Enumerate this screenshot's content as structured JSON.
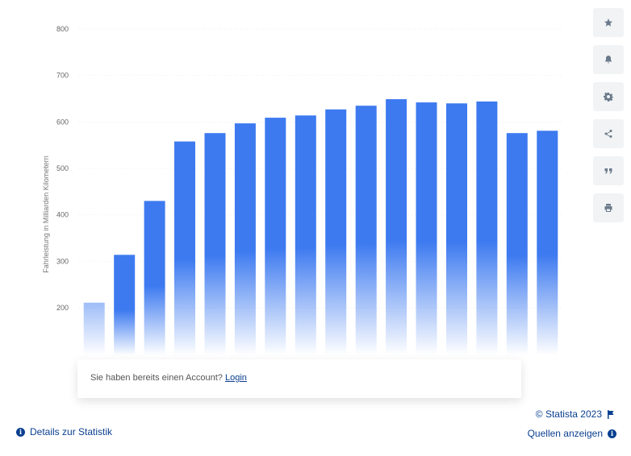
{
  "chart_data": {
    "type": "bar",
    "title": "",
    "xlabel": "",
    "ylabel": "Fahrleistung in Milliarden Kilometern",
    "ylim": [
      100,
      800
    ],
    "yticks": [
      "200",
      "300",
      "400",
      "500",
      "600",
      "700",
      "800"
    ],
    "grid": true,
    "categories": [
      "",
      "",
      "",
      "",
      "",
      "",
      "",
      "",
      "",
      "",
      "",
      "",
      "",
      "",
      "",
      ""
    ],
    "values": [
      211,
      314,
      430,
      558,
      576,
      597,
      609,
      614,
      627,
      635,
      649,
      642,
      640,
      644,
      576,
      581
    ],
    "colors": {
      "bar": "#3d7af0",
      "grid": "#eeeeee"
    }
  },
  "login": {
    "prompt": "Sie haben bereits einen Account?",
    "link": "Login"
  },
  "sidebar": {
    "buttons": [
      {
        "icon": "star-icon"
      },
      {
        "icon": "bell-icon"
      },
      {
        "icon": "gear-icon"
      },
      {
        "icon": "share-icon"
      },
      {
        "icon": "quote-icon"
      },
      {
        "icon": "print-icon"
      }
    ]
  },
  "footer": {
    "copyright": "© Statista 2023",
    "sources": "Quellen anzeigen",
    "details": "Details zur Statistik"
  }
}
